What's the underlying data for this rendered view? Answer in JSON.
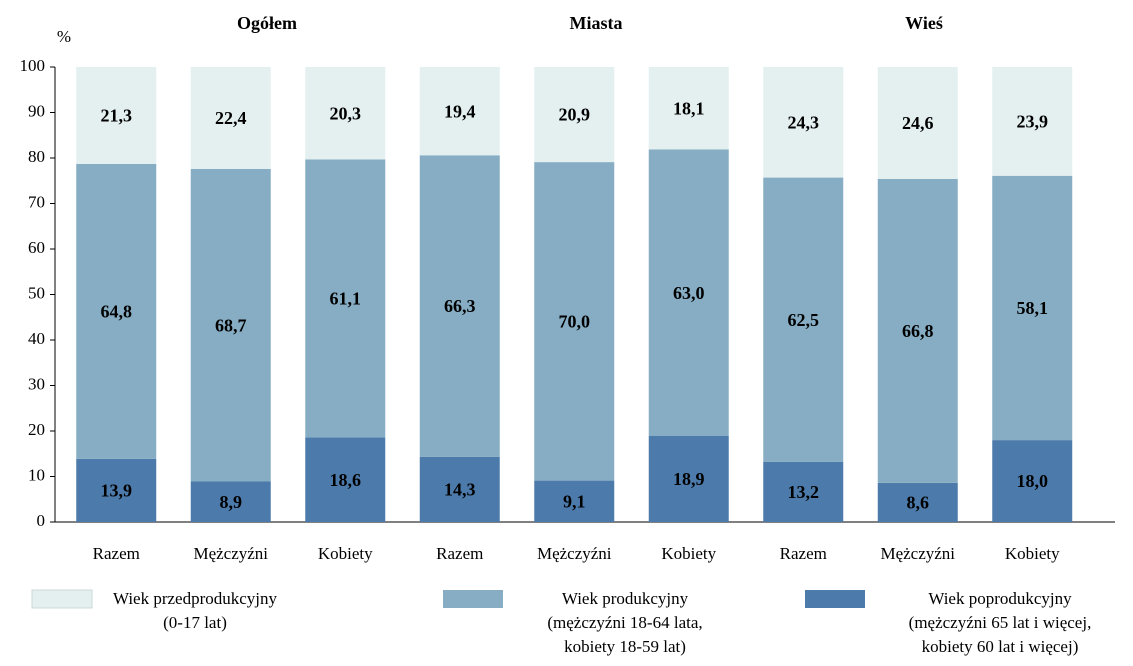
{
  "chart_data": {
    "type": "stacked_bar",
    "y_label": "%",
    "groups": [
      "Ogółem",
      "Miasta",
      "Wieś"
    ],
    "categories": [
      "Razem",
      "Mężczyźni",
      "Kobiety",
      "Razem",
      "Mężczyźni",
      "Kobiety",
      "Razem",
      "Mężczyźni",
      "Kobiety"
    ],
    "series": [
      {
        "name": "Wiek przedprodukcyjny\n(0-17 lat)",
        "color": "#e4f0f0",
        "values": [
          21.3,
          22.4,
          20.3,
          19.4,
          20.9,
          18.1,
          24.3,
          24.6,
          23.9
        ],
        "value_labels": [
          "21,3",
          "22,4",
          "20,3",
          "19,4",
          "20,9",
          "18,1",
          "24,3",
          "24,6",
          "23,9"
        ]
      },
      {
        "name": "Wiek produkcyjny\n(mężczyźni 18-64 lata,\nkobiety 18-59 lat)",
        "color": "#86adc3",
        "values": [
          64.8,
          68.7,
          61.1,
          66.3,
          70.0,
          63.0,
          62.5,
          66.8,
          58.1
        ],
        "value_labels": [
          "64,8",
          "68,7",
          "61,1",
          "66,3",
          "70,0",
          "63,0",
          "62,5",
          "66,8",
          "58,1"
        ]
      },
      {
        "name": "Wiek poprodukcyjny\n(mężczyźni 65 lat i więcej,\nkobiety 60 lat i więcej)",
        "color": "#4c7bab",
        "values": [
          13.9,
          8.9,
          18.6,
          14.3,
          9.1,
          18.9,
          13.2,
          8.6,
          18.0
        ],
        "value_labels": [
          "13,9",
          "8,9",
          "18,6",
          "14,3",
          "9,1",
          "18,9",
          "13,2",
          "8,6",
          "18,0"
        ]
      }
    ],
    "ylim": [
      0,
      100
    ],
    "yticks": [
      0,
      10,
      20,
      30,
      40,
      50,
      60,
      70,
      80,
      90,
      100
    ]
  }
}
